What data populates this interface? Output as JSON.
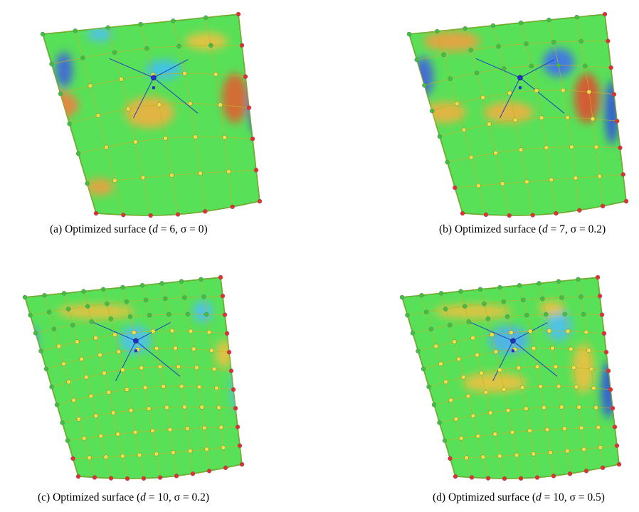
{
  "figures": [
    {
      "caption": [
        "(a) Optimized surface (",
        "d",
        " = 6, σ = 0)"
      ]
    },
    {
      "caption": [
        "(b) Optimized surface (",
        "d",
        " = 7, σ = 0.2)"
      ]
    },
    {
      "caption": [
        "(c) Optimized surface (",
        "d",
        " = 10, σ = 0.2)"
      ]
    },
    {
      "caption": [
        "(d) Optimized surface (",
        "d",
        " = 10, σ = 0.5)"
      ]
    }
  ]
}
